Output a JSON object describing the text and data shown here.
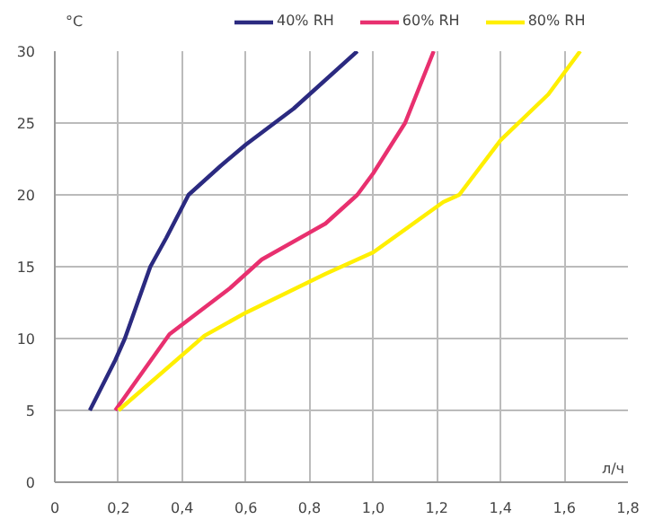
{
  "chart_data": {
    "type": "line",
    "ylabel": "°C",
    "xlabel": "л/ч",
    "legend": "top",
    "grid": true,
    "marker": "none",
    "line_style": "solid",
    "xlim": [
      0,
      1.8
    ],
    "ylim": [
      0,
      30
    ],
    "xticks": [
      0,
      {
        "value": 0.2,
        "label": "0,2"
      },
      {
        "value": 0.4,
        "label": "0,4"
      },
      {
        "value": 0.6,
        "label": "0,6"
      },
      {
        "value": 0.8,
        "label": "0,8"
      },
      {
        "value": 1.0,
        "label": "1,0"
      },
      {
        "value": 1.2,
        "label": "1,2"
      },
      {
        "value": 1.4,
        "label": "1,4"
      },
      {
        "value": 1.6,
        "label": "1,6"
      },
      {
        "value": 1.8,
        "label": "1,8"
      }
    ],
    "yticks": [
      0,
      5,
      10,
      15,
      20,
      25,
      30
    ],
    "series": [
      {
        "name": "40% RH",
        "color": "#2b2a80",
        "x": [
          0.11,
          0.19,
          0.22,
          0.3,
          0.35,
          0.42,
          0.52,
          0.6,
          0.75,
          0.95
        ],
        "values": [
          5,
          8.5,
          10,
          15,
          17,
          20,
          22,
          23.5,
          26,
          30
        ]
      },
      {
        "name": "60% RH",
        "color": "#e8306f",
        "x": [
          0.19,
          0.36,
          0.55,
          0.65,
          0.85,
          0.95,
          1.0,
          1.1,
          1.19
        ],
        "values": [
          5,
          10.3,
          13.5,
          15.5,
          18,
          20,
          21.5,
          25,
          30
        ]
      },
      {
        "name": "80% RH",
        "color": "#ffef00",
        "x": [
          0.2,
          0.47,
          0.6,
          0.85,
          1.0,
          1.22,
          1.27,
          1.4,
          1.55,
          1.65
        ],
        "values": [
          5,
          10.2,
          11.8,
          14.5,
          16,
          19.5,
          20,
          23.8,
          27,
          30
        ]
      }
    ]
  }
}
